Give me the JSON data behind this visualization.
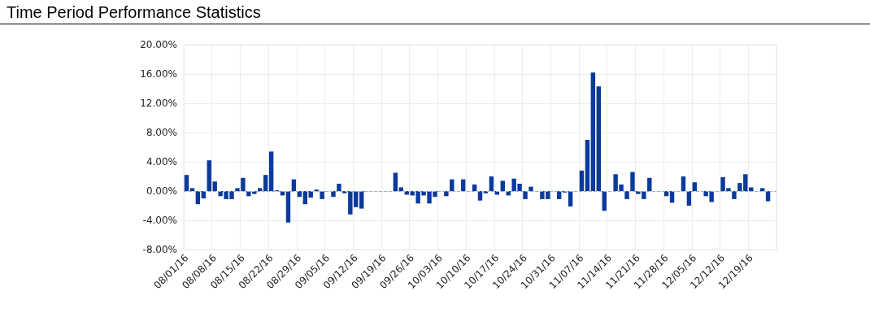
{
  "chart_data": {
    "type": "bar",
    "title": "Time Period Performance Statistics",
    "categories": [
      "08/01/16",
      null,
      null,
      null,
      null,
      "08/08/16",
      null,
      null,
      null,
      null,
      "08/15/16",
      null,
      null,
      null,
      null,
      "08/22/16",
      null,
      null,
      null,
      null,
      "08/29/16",
      null,
      null,
      null,
      null,
      "09/05/16",
      null,
      null,
      null,
      null,
      "09/12/16",
      null,
      null,
      null,
      null,
      "09/19/16",
      null,
      null,
      null,
      null,
      "09/26/16",
      null,
      null,
      null,
      null,
      "10/03/16",
      null,
      null,
      null,
      null,
      "10/10/16",
      null,
      null,
      null,
      null,
      "10/17/16",
      null,
      null,
      null,
      null,
      "10/24/16",
      null,
      null,
      null,
      null,
      "10/31/16",
      null,
      null,
      null,
      null,
      "11/07/16",
      null,
      null,
      null,
      null,
      "11/14/16",
      null,
      null,
      null,
      null,
      "11/21/16",
      null,
      null,
      null,
      null,
      "11/28/16",
      null,
      null,
      null,
      null,
      "12/05/16",
      null,
      null,
      null,
      null,
      "12/12/16",
      null,
      null,
      null,
      null,
      "12/19/16",
      null,
      null,
      null,
      null
    ],
    "values": [
      2.2,
      0.4,
      -1.8,
      -1.0,
      4.2,
      1.3,
      -0.7,
      -1.1,
      -1.1,
      0.4,
      1.8,
      -0.7,
      -0.4,
      0.4,
      2.2,
      5.4,
      0.1,
      -0.6,
      -4.3,
      1.6,
      -0.8,
      -1.8,
      -0.9,
      0.2,
      -1.1,
      0.0,
      -0.8,
      1.0,
      -0.3,
      -3.2,
      -2.2,
      -2.4,
      null,
      null,
      null,
      null,
      null,
      2.5,
      0.5,
      -0.5,
      -0.6,
      -1.7,
      -0.6,
      -1.7,
      -0.8,
      null,
      -0.7,
      1.6,
      null,
      1.6,
      null,
      0.9,
      -1.3,
      -0.3,
      2.0,
      -0.5,
      1.4,
      -0.6,
      1.7,
      1.0,
      -1.1,
      0.6,
      null,
      -1.1,
      -1.1,
      null,
      -1.1,
      -0.2,
      -2.1,
      null,
      2.8,
      7.0,
      16.2,
      14.3,
      -2.7,
      null,
      2.3,
      0.9,
      -1.1,
      2.6,
      -0.4,
      -1.1,
      1.8,
      null,
      null,
      -0.7,
      -1.6,
      null,
      2.0,
      -2.0,
      1.2,
      null,
      -0.7,
      -1.5,
      null,
      1.9,
      0.4,
      -1.1,
      1.1,
      2.3,
      0.5,
      null,
      0.4,
      -1.4,
      null
    ],
    "color": "#0a3a9c",
    "ylim": [
      -8,
      20
    ],
    "yticks": [
      {
        "value": -8,
        "label": "-8.00%"
      },
      {
        "value": -4,
        "label": "-4.00%"
      },
      {
        "value": 0,
        "label": "0.00%"
      },
      {
        "value": 4,
        "label": "4.00%"
      },
      {
        "value": 8,
        "label": "8.00%"
      },
      {
        "value": 12,
        "label": "12.00%"
      },
      {
        "value": 16,
        "label": "16.00%"
      },
      {
        "value": 20,
        "label": "20.00%"
      }
    ],
    "grid": true,
    "ref_lines": [
      {
        "axis": "y",
        "value": 0,
        "color": "#9fb0d8",
        "line_style": "dashed"
      }
    ]
  }
}
